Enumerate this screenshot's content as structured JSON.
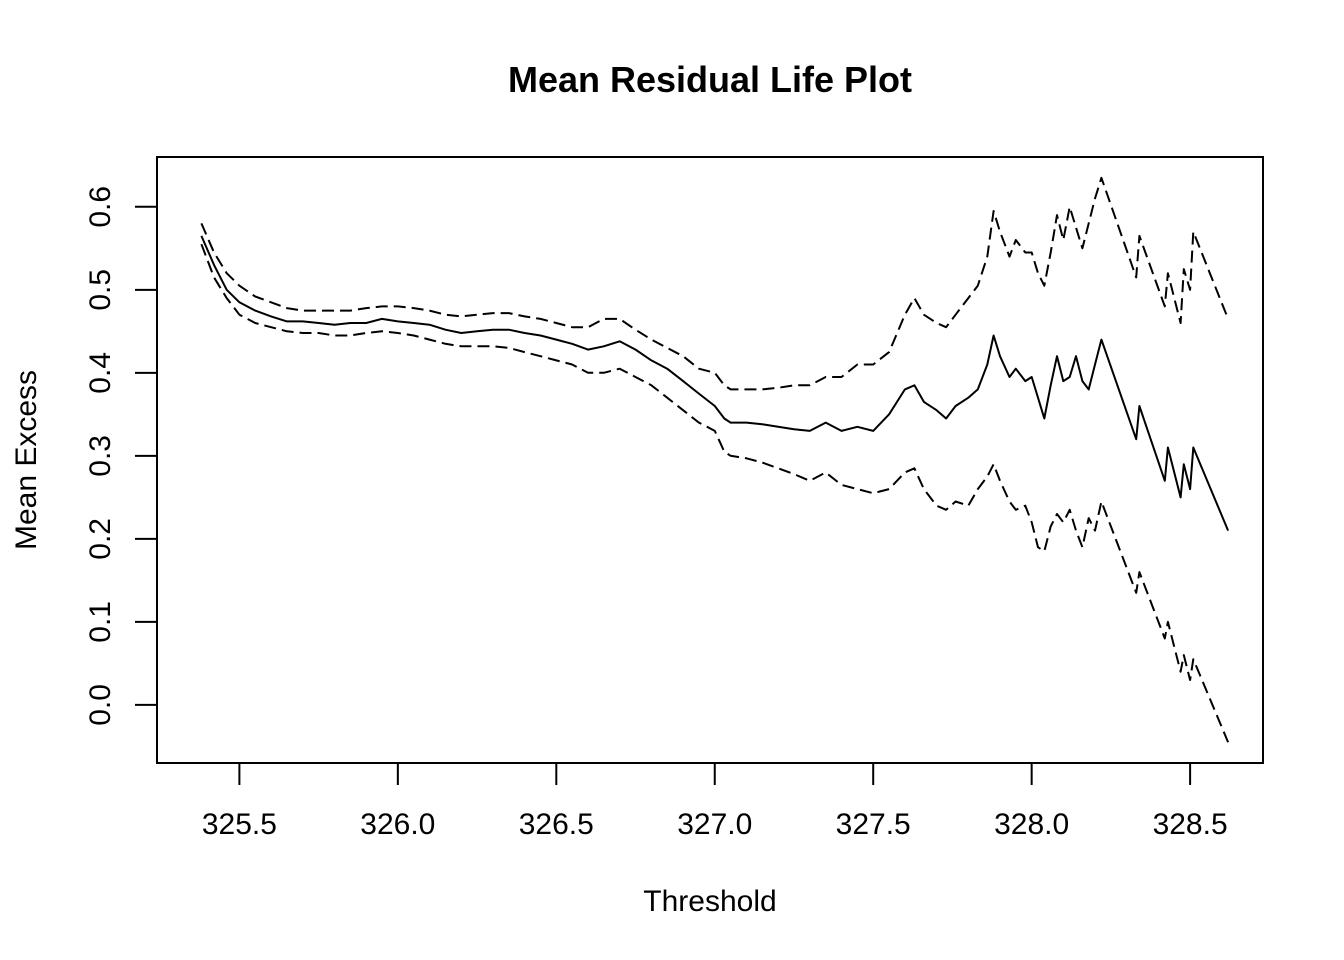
{
  "chart_data": {
    "type": "line",
    "title": "Mean Residual Life Plot",
    "xlabel": "Threshold",
    "ylabel": "Mean Excess",
    "xlim": [
      325.24,
      328.73
    ],
    "ylim": [
      -0.07,
      0.66
    ],
    "x_ticks": [
      "325.5",
      "326.0",
      "326.5",
      "327.0",
      "327.5",
      "328.0",
      "328.5"
    ],
    "y_ticks": [
      "0.0",
      "0.1",
      "0.2",
      "0.3",
      "0.4",
      "0.5",
      "0.6"
    ],
    "grid": false,
    "legend": "none",
    "series": [
      {
        "style": "solid",
        "x": [
          325.38,
          325.42,
          325.46,
          325.5,
          325.55,
          325.6,
          325.65,
          325.7,
          325.75,
          325.8,
          325.85,
          325.9,
          325.95,
          326.0,
          326.05,
          326.1,
          326.15,
          326.2,
          326.25,
          326.3,
          326.35,
          326.4,
          326.45,
          326.5,
          326.55,
          326.6,
          326.65,
          326.7,
          326.75,
          326.8,
          326.85,
          326.9,
          326.95,
          327.0,
          327.03,
          327.05,
          327.1,
          327.15,
          327.2,
          327.25,
          327.3,
          327.35,
          327.4,
          327.45,
          327.5,
          327.55,
          327.6,
          327.63,
          327.66,
          327.7,
          327.73,
          327.76,
          327.8,
          327.83,
          327.86,
          327.88,
          327.9,
          327.93,
          327.95,
          327.98,
          328.0,
          328.02,
          328.04,
          328.06,
          328.08,
          328.1,
          328.12,
          328.14,
          328.16,
          328.18,
          328.2,
          328.22,
          328.33,
          328.34,
          328.42,
          328.43,
          328.47,
          328.48,
          328.5,
          328.51,
          328.62
        ],
        "y": [
          0.565,
          0.53,
          0.5,
          0.485,
          0.475,
          0.468,
          0.462,
          0.462,
          0.46,
          0.458,
          0.46,
          0.46,
          0.465,
          0.462,
          0.46,
          0.458,
          0.452,
          0.448,
          0.45,
          0.452,
          0.452,
          0.448,
          0.445,
          0.44,
          0.435,
          0.428,
          0.432,
          0.438,
          0.428,
          0.415,
          0.405,
          0.39,
          0.375,
          0.36,
          0.345,
          0.34,
          0.34,
          0.338,
          0.335,
          0.332,
          0.33,
          0.34,
          0.33,
          0.335,
          0.33,
          0.35,
          0.38,
          0.385,
          0.365,
          0.355,
          0.345,
          0.36,
          0.37,
          0.38,
          0.41,
          0.445,
          0.42,
          0.395,
          0.405,
          0.39,
          0.395,
          0.37,
          0.345,
          0.385,
          0.42,
          0.39,
          0.395,
          0.42,
          0.39,
          0.38,
          0.41,
          0.44,
          0.32,
          0.36,
          0.27,
          0.31,
          0.25,
          0.29,
          0.26,
          0.31,
          0.21
        ]
      },
      {
        "style": "dashed",
        "x": [
          325.38,
          325.42,
          325.46,
          325.5,
          325.55,
          325.6,
          325.65,
          325.7,
          325.75,
          325.8,
          325.85,
          325.9,
          325.95,
          326.0,
          326.05,
          326.1,
          326.15,
          326.2,
          326.25,
          326.3,
          326.35,
          326.4,
          326.45,
          326.5,
          326.55,
          326.6,
          326.65,
          326.7,
          326.75,
          326.8,
          326.85,
          326.9,
          326.95,
          327.0,
          327.03,
          327.05,
          327.1,
          327.15,
          327.2,
          327.25,
          327.3,
          327.35,
          327.4,
          327.45,
          327.5,
          327.55,
          327.6,
          327.63,
          327.66,
          327.7,
          327.73,
          327.76,
          327.8,
          327.83,
          327.86,
          327.88,
          327.9,
          327.93,
          327.95,
          327.98,
          328.0,
          328.02,
          328.04,
          328.06,
          328.08,
          328.1,
          328.12,
          328.14,
          328.16,
          328.18,
          328.2,
          328.22,
          328.33,
          328.34,
          328.42,
          328.43,
          328.47,
          328.48,
          328.5,
          328.51,
          328.62
        ],
        "y": [
          0.58,
          0.545,
          0.52,
          0.505,
          0.492,
          0.485,
          0.478,
          0.475,
          0.475,
          0.475,
          0.475,
          0.478,
          0.48,
          0.48,
          0.478,
          0.475,
          0.47,
          0.468,
          0.47,
          0.472,
          0.472,
          0.468,
          0.465,
          0.46,
          0.455,
          0.455,
          0.465,
          0.465,
          0.452,
          0.44,
          0.43,
          0.42,
          0.405,
          0.4,
          0.385,
          0.38,
          0.38,
          0.38,
          0.382,
          0.385,
          0.385,
          0.395,
          0.395,
          0.41,
          0.41,
          0.425,
          0.47,
          0.49,
          0.47,
          0.46,
          0.455,
          0.47,
          0.49,
          0.505,
          0.54,
          0.595,
          0.57,
          0.54,
          0.56,
          0.545,
          0.545,
          0.52,
          0.505,
          0.545,
          0.59,
          0.56,
          0.6,
          0.575,
          0.55,
          0.58,
          0.61,
          0.635,
          0.515,
          0.565,
          0.48,
          0.52,
          0.46,
          0.525,
          0.5,
          0.57,
          0.465
        ]
      },
      {
        "style": "dashed",
        "x": [
          325.38,
          325.42,
          325.46,
          325.5,
          325.55,
          325.6,
          325.65,
          325.7,
          325.75,
          325.8,
          325.85,
          325.9,
          325.95,
          326.0,
          326.05,
          326.1,
          326.15,
          326.2,
          326.25,
          326.3,
          326.35,
          326.4,
          326.45,
          326.5,
          326.55,
          326.6,
          326.65,
          326.7,
          326.75,
          326.8,
          326.85,
          326.9,
          326.95,
          327.0,
          327.03,
          327.05,
          327.1,
          327.15,
          327.2,
          327.25,
          327.3,
          327.35,
          327.4,
          327.45,
          327.5,
          327.55,
          327.6,
          327.63,
          327.66,
          327.7,
          327.73,
          327.76,
          327.8,
          327.83,
          327.86,
          327.88,
          327.9,
          327.93,
          327.95,
          327.98,
          328.0,
          328.02,
          328.04,
          328.06,
          328.08,
          328.1,
          328.12,
          328.14,
          328.16,
          328.18,
          328.2,
          328.22,
          328.33,
          328.34,
          328.42,
          328.43,
          328.47,
          328.48,
          328.5,
          328.51,
          328.62
        ],
        "y": [
          0.555,
          0.515,
          0.49,
          0.47,
          0.46,
          0.455,
          0.45,
          0.448,
          0.448,
          0.445,
          0.445,
          0.448,
          0.45,
          0.448,
          0.445,
          0.44,
          0.435,
          0.432,
          0.432,
          0.432,
          0.43,
          0.425,
          0.42,
          0.415,
          0.41,
          0.4,
          0.4,
          0.405,
          0.395,
          0.385,
          0.37,
          0.355,
          0.34,
          0.33,
          0.305,
          0.3,
          0.297,
          0.292,
          0.285,
          0.278,
          0.27,
          0.28,
          0.265,
          0.26,
          0.255,
          0.26,
          0.28,
          0.285,
          0.26,
          0.24,
          0.235,
          0.245,
          0.24,
          0.26,
          0.275,
          0.29,
          0.27,
          0.245,
          0.235,
          0.24,
          0.22,
          0.19,
          0.185,
          0.215,
          0.23,
          0.22,
          0.235,
          0.21,
          0.19,
          0.225,
          0.21,
          0.245,
          0.135,
          0.16,
          0.08,
          0.1,
          0.04,
          0.06,
          0.03,
          0.055,
          -0.045
        ]
      }
    ]
  }
}
